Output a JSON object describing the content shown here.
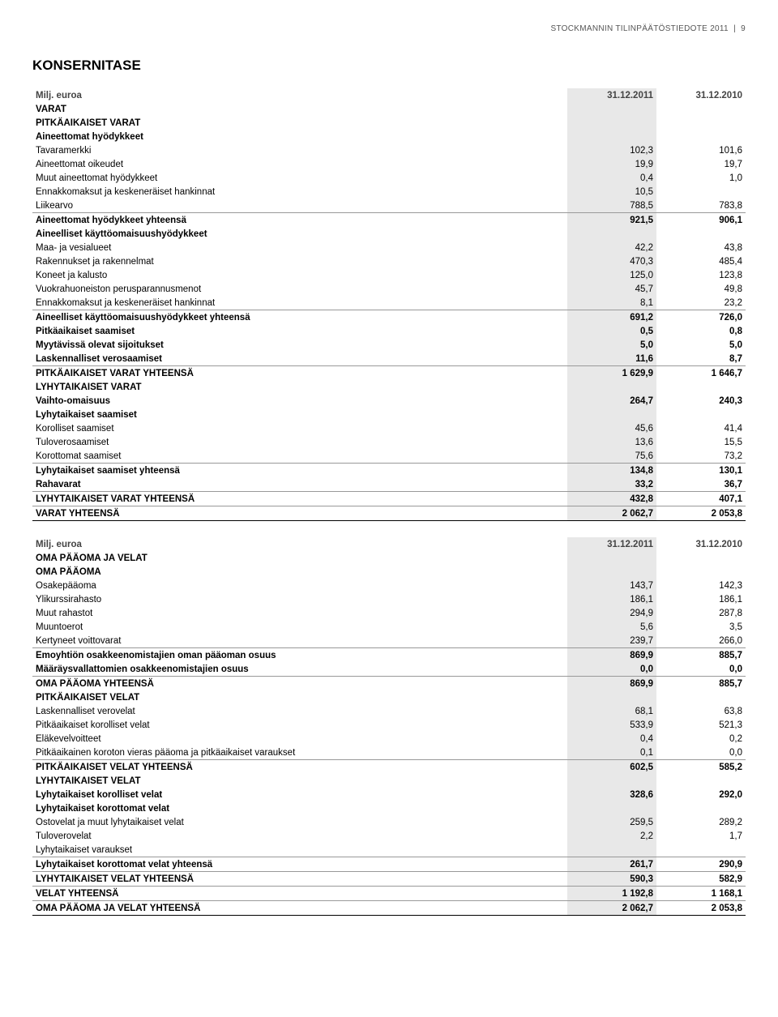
{
  "doc": {
    "header": "STOCKMANNIN TILINPÄÄTÖSTIEDOTE 2011",
    "page": "9",
    "title": "KONSERNITASE"
  },
  "colors": {
    "background": "#ffffff",
    "text": "#000000",
    "shade": "#e8e8e8",
    "line": "#999999",
    "header_text": "#555555"
  },
  "fonts": {
    "body_pt": 11.5,
    "title_pt": 17,
    "header_pt": 10
  },
  "table1": {
    "cols": [
      "Milj. euroa",
      "31.12.2011",
      "31.12.2010"
    ],
    "col_widths": [
      "auto",
      "110px",
      "110px"
    ],
    "sections": [
      {
        "label": "VARAT",
        "vals": [
          "",
          ""
        ],
        "style": "caps"
      },
      {
        "label": "PITKÄAIKAISET VARAT",
        "vals": [
          "",
          ""
        ],
        "style": "caps"
      },
      {
        "label": "Aineettomat hyödykkeet",
        "vals": [
          "",
          ""
        ],
        "style": "section"
      },
      {
        "label": "Tavaramerkki",
        "vals": [
          "102,3",
          "101,6"
        ],
        "style": ""
      },
      {
        "label": "Aineettomat oikeudet",
        "vals": [
          "19,9",
          "19,7"
        ],
        "style": ""
      },
      {
        "label": "Muut aineettomat hyödykkeet",
        "vals": [
          "0,4",
          "1,0"
        ],
        "style": ""
      },
      {
        "label": "Ennakkomaksut ja keskeneräiset hankinnat",
        "vals": [
          "10,5",
          ""
        ],
        "style": ""
      },
      {
        "label": "Liikearvo",
        "vals": [
          "788,5",
          "783,8"
        ],
        "style": "line"
      },
      {
        "label": "Aineettomat hyödykkeet yhteensä",
        "vals": [
          "921,5",
          "906,1"
        ],
        "style": "section"
      },
      {
        "label": "Aineelliset käyttöomaisuushyödykkeet",
        "vals": [
          "",
          ""
        ],
        "style": "section"
      },
      {
        "label": "Maa- ja vesialueet",
        "vals": [
          "42,2",
          "43,8"
        ],
        "style": ""
      },
      {
        "label": "Rakennukset ja rakennelmat",
        "vals": [
          "470,3",
          "485,4"
        ],
        "style": ""
      },
      {
        "label": "Koneet ja kalusto",
        "vals": [
          "125,0",
          "123,8"
        ],
        "style": ""
      },
      {
        "label": "Vuokrahuoneiston perusparannusmenot",
        "vals": [
          "45,7",
          "49,8"
        ],
        "style": ""
      },
      {
        "label": "Ennakkomaksut ja keskeneräiset hankinnat",
        "vals": [
          "8,1",
          "23,2"
        ],
        "style": "line"
      },
      {
        "label": "Aineelliset käyttöomaisuushyödykkeet yhteensä",
        "vals": [
          "691,2",
          "726,0"
        ],
        "style": "section"
      },
      {
        "label": "Pitkäaikaiset saamiset",
        "vals": [
          "0,5",
          "0,8"
        ],
        "style": "section"
      },
      {
        "label": "Myytävissä olevat sijoitukset",
        "vals": [
          "5,0",
          "5,0"
        ],
        "style": "section"
      },
      {
        "label": "Laskennalliset verosaamiset",
        "vals": [
          "11,6",
          "8,7"
        ],
        "style": "section line"
      },
      {
        "label": "PITKÄAIKAISET VARAT YHTEENSÄ",
        "vals": [
          "1 629,9",
          "1 646,7"
        ],
        "style": "caps"
      },
      {
        "label": "LYHYTAIKAISET VARAT",
        "vals": [
          "",
          ""
        ],
        "style": "caps"
      },
      {
        "label": "Vaihto-omaisuus",
        "vals": [
          "264,7",
          "240,3"
        ],
        "style": "section"
      },
      {
        "label": "Lyhytaikaiset saamiset",
        "vals": [
          "",
          ""
        ],
        "style": "section"
      },
      {
        "label": "Korolliset saamiset",
        "vals": [
          "45,6",
          "41,4"
        ],
        "style": ""
      },
      {
        "label": "Tuloverosaamiset",
        "vals": [
          "13,6",
          "15,5"
        ],
        "style": ""
      },
      {
        "label": "Korottomat saamiset",
        "vals": [
          "75,6",
          "73,2"
        ],
        "style": "line"
      },
      {
        "label": "Lyhytaikaiset saamiset yhteensä",
        "vals": [
          "134,8",
          "130,1"
        ],
        "style": "section"
      },
      {
        "label": "Rahavarat",
        "vals": [
          "33,2",
          "36,7"
        ],
        "style": "section line"
      },
      {
        "label": "LYHYTAIKAISET VARAT YHTEENSÄ",
        "vals": [
          "432,8",
          "407,1"
        ],
        "style": "caps line"
      },
      {
        "label": "VARAT YHTEENSÄ",
        "vals": [
          "2 062,7",
          "2 053,8"
        ],
        "style": "caps linebold"
      }
    ]
  },
  "table2": {
    "cols": [
      "Milj. euroa",
      "31.12.2011",
      "31.12.2010"
    ],
    "col_widths": [
      "auto",
      "110px",
      "110px"
    ],
    "sections": [
      {
        "label": "OMA PÄÄOMA JA VELAT",
        "vals": [
          "",
          ""
        ],
        "style": "caps"
      },
      {
        "label": "OMA PÄÄOMA",
        "vals": [
          "",
          ""
        ],
        "style": "caps"
      },
      {
        "label": "Osakepääoma",
        "vals": [
          "143,7",
          "142,3"
        ],
        "style": ""
      },
      {
        "label": "Ylikurssirahasto",
        "vals": [
          "186,1",
          "186,1"
        ],
        "style": ""
      },
      {
        "label": "Muut rahastot",
        "vals": [
          "294,9",
          "287,8"
        ],
        "style": ""
      },
      {
        "label": "Muuntoerot",
        "vals": [
          "5,6",
          "3,5"
        ],
        "style": ""
      },
      {
        "label": "Kertyneet voittovarat",
        "vals": [
          "239,7",
          "266,0"
        ],
        "style": "line"
      },
      {
        "label": "Emoyhtiön osakkeenomistajien oman pääoman osuus",
        "vals": [
          "869,9",
          "885,7"
        ],
        "style": "section"
      },
      {
        "label": "Määräysvallattomien osakkeenomistajien osuus",
        "vals": [
          "0,0",
          "0,0"
        ],
        "style": "section line"
      },
      {
        "label": "OMA PÄÄOMA YHTEENSÄ",
        "vals": [
          "869,9",
          "885,7"
        ],
        "style": "caps"
      },
      {
        "label": "PITKÄAIKAISET VELAT",
        "vals": [
          "",
          ""
        ],
        "style": "caps"
      },
      {
        "label": "Laskennalliset verovelat",
        "vals": [
          "68,1",
          "63,8"
        ],
        "style": ""
      },
      {
        "label": "Pitkäaikaiset korolliset velat",
        "vals": [
          "533,9",
          "521,3"
        ],
        "style": ""
      },
      {
        "label": "Eläkevelvoitteet",
        "vals": [
          "0,4",
          "0,2"
        ],
        "style": ""
      },
      {
        "label": "Pitkäaikainen koroton vieras pääoma ja pitkäaikaiset varaukset",
        "vals": [
          "0,1",
          "0,0"
        ],
        "style": "line"
      },
      {
        "label": "PITKÄAIKAISET VELAT YHTEENSÄ",
        "vals": [
          "602,5",
          "585,2"
        ],
        "style": "caps"
      },
      {
        "label": "LYHYTAIKAISET VELAT",
        "vals": [
          "",
          ""
        ],
        "style": "caps"
      },
      {
        "label": "Lyhytaikaiset korolliset velat",
        "vals": [
          "328,6",
          "292,0"
        ],
        "style": "section"
      },
      {
        "label": "Lyhytaikaiset korottomat velat",
        "vals": [
          "",
          ""
        ],
        "style": "section"
      },
      {
        "label": "Ostovelat ja muut lyhytaikaiset velat",
        "vals": [
          "259,5",
          "289,2"
        ],
        "style": ""
      },
      {
        "label": "Tuloverovelat",
        "vals": [
          "2,2",
          "1,7"
        ],
        "style": ""
      },
      {
        "label": "Lyhytaikaiset varaukset",
        "vals": [
          "",
          ""
        ],
        "style": "line"
      },
      {
        "label": "Lyhytaikaiset korottomat velat yhteensä",
        "vals": [
          "261,7",
          "290,9"
        ],
        "style": "section line"
      },
      {
        "label": "LYHYTAIKAISET VELAT YHTEENSÄ",
        "vals": [
          "590,3",
          "582,9"
        ],
        "style": "caps line"
      },
      {
        "label": "VELAT YHTEENSÄ",
        "vals": [
          "1 192,8",
          "1 168,1"
        ],
        "style": "caps line"
      },
      {
        "label": "OMA PÄÄOMA JA VELAT YHTEENSÄ",
        "vals": [
          "2 062,7",
          "2 053,8"
        ],
        "style": "caps linebold"
      }
    ]
  }
}
